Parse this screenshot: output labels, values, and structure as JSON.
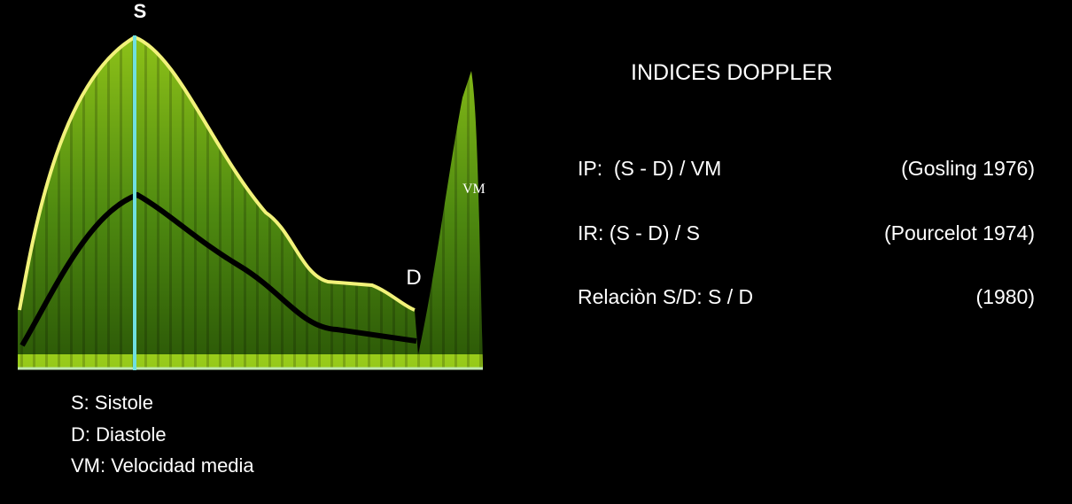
{
  "waveform": {
    "peak_label": "S",
    "diastole_label": "D",
    "mean_label": "VM"
  },
  "legend": [
    "S: Sistole",
    "D: Diastole",
    "VM: Velocidad media"
  ],
  "panel": {
    "title": "INDICES DOPPLER",
    "rows": [
      {
        "formula": "IP:  (S - D) / VM",
        "source": "(Gosling 1976)"
      },
      {
        "formula": "IR: (S - D) / S",
        "source": "(Pourcelot 1974)"
      },
      {
        "formula": "Relaciòn S/D: S / D",
        "source": "(1980)"
      }
    ]
  }
}
